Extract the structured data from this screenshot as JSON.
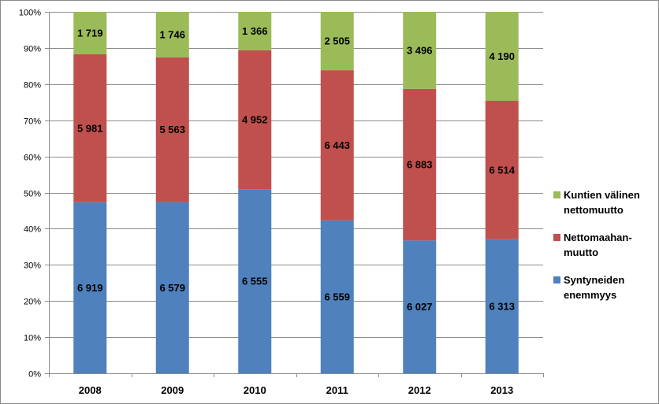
{
  "chart_data": {
    "type": "bar",
    "stacked": "percent",
    "categories": [
      "2008",
      "2009",
      "2010",
      "2011",
      "2012",
      "2013"
    ],
    "series": [
      {
        "name": "Syntyneiden enemmyys",
        "legend_lines": [
          "Syntyneiden",
          "enemmyys"
        ],
        "color": "#4f81bd",
        "values": [
          6919,
          6579,
          6555,
          6559,
          6027,
          6313
        ],
        "labels": [
          "6 919",
          "6 579",
          "6 555",
          "6 559",
          "6 027",
          "6 313"
        ]
      },
      {
        "name": "Nettomaahan-muutto",
        "legend_lines": [
          "Nettomaahan-",
          "muutto"
        ],
        "color": "#c0504d",
        "values": [
          5981,
          5563,
          4952,
          6443,
          6883,
          6514
        ],
        "labels": [
          "5 981",
          "5 563",
          "4 952",
          "6 443",
          "6 883",
          "6 514"
        ]
      },
      {
        "name": "Kuntien välinen nettomuutto",
        "legend_lines": [
          "Kuntien välinen",
          "nettomuutto"
        ],
        "color": "#9bbb59",
        "values": [
          1719,
          1746,
          1366,
          2505,
          3496,
          4190
        ],
        "labels": [
          "1 719",
          "1 746",
          "1 366",
          "2 505",
          "3 496",
          "4 190"
        ]
      }
    ],
    "y_ticks": [
      "0%",
      "10%",
      "20%",
      "30%",
      "40%",
      "50%",
      "60%",
      "70%",
      "80%",
      "90%",
      "100%"
    ],
    "ylim": [
      0,
      100
    ],
    "grid": true,
    "legend_position": "right",
    "title": "",
    "xlabel": "",
    "ylabel": ""
  }
}
